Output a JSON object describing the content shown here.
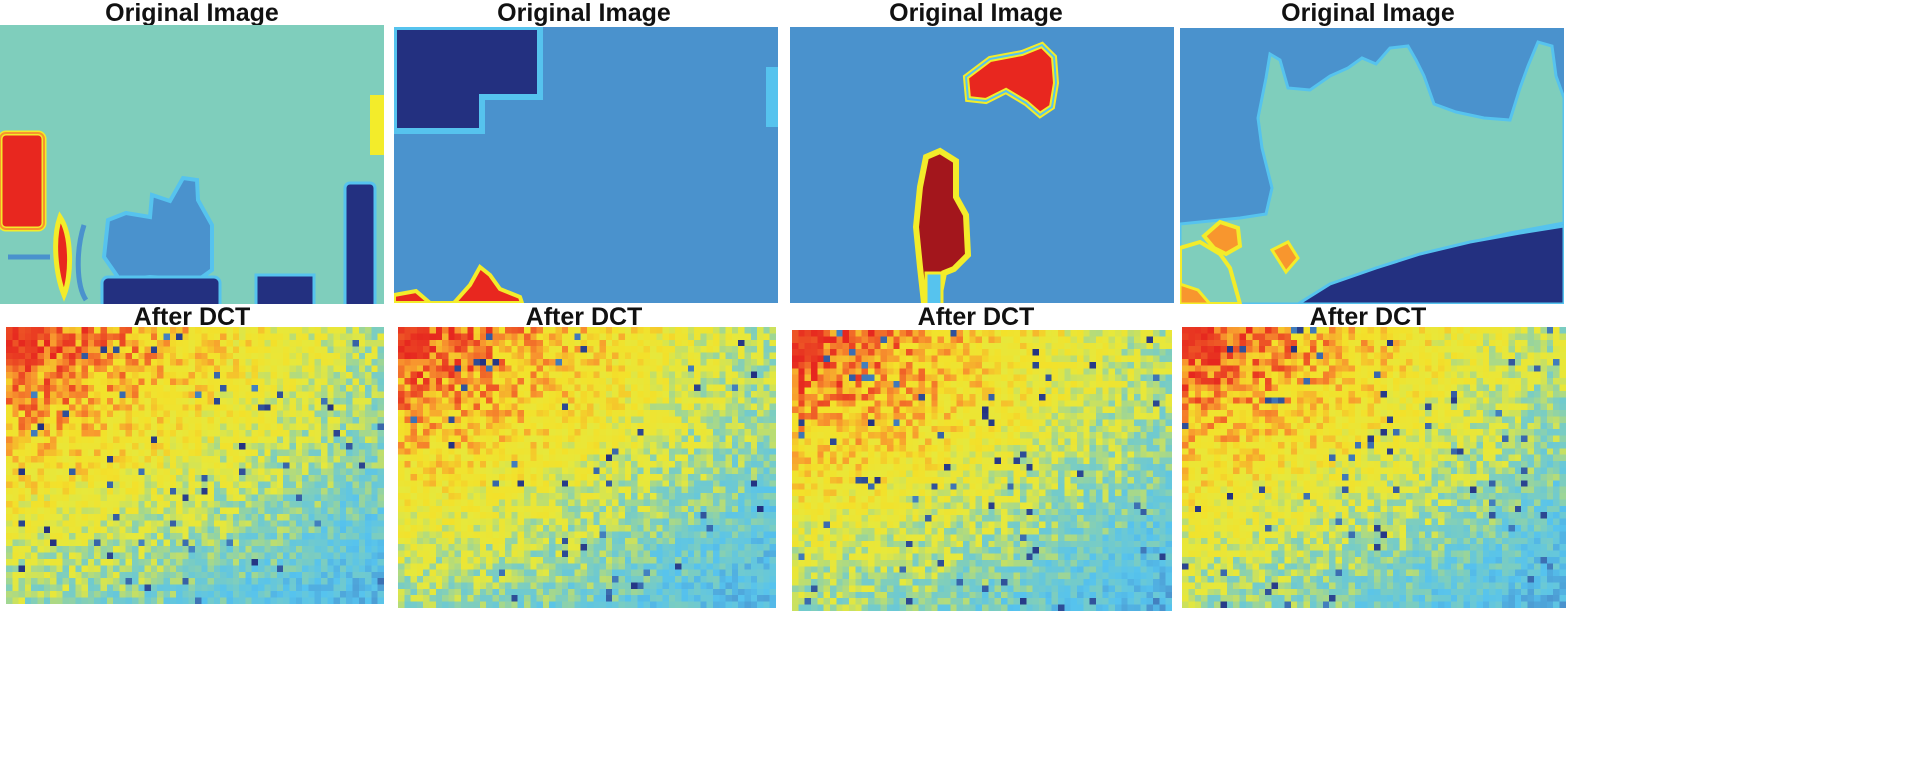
{
  "figure": {
    "panels": [
      {
        "id": "p1",
        "top_title": "Original Image",
        "bottom_title": "After DCT"
      },
      {
        "id": "p2",
        "top_title": "Original Image",
        "bottom_title": "After DCT"
      },
      {
        "id": "p3",
        "top_title": "Original Image",
        "bottom_title": "After DCT"
      },
      {
        "id": "p4",
        "top_title": "Original Image",
        "bottom_title": "After DCT"
      }
    ],
    "colors": {
      "teal": "#7fcebc",
      "mid_blue": "#4a92cd",
      "navy": "#233080",
      "light_cyan": "#56c3ee",
      "yellow": "#f3ec2a",
      "orange": "#f8962e",
      "red": "#e8271f",
      "dark_red": "#a3161c"
    }
  }
}
